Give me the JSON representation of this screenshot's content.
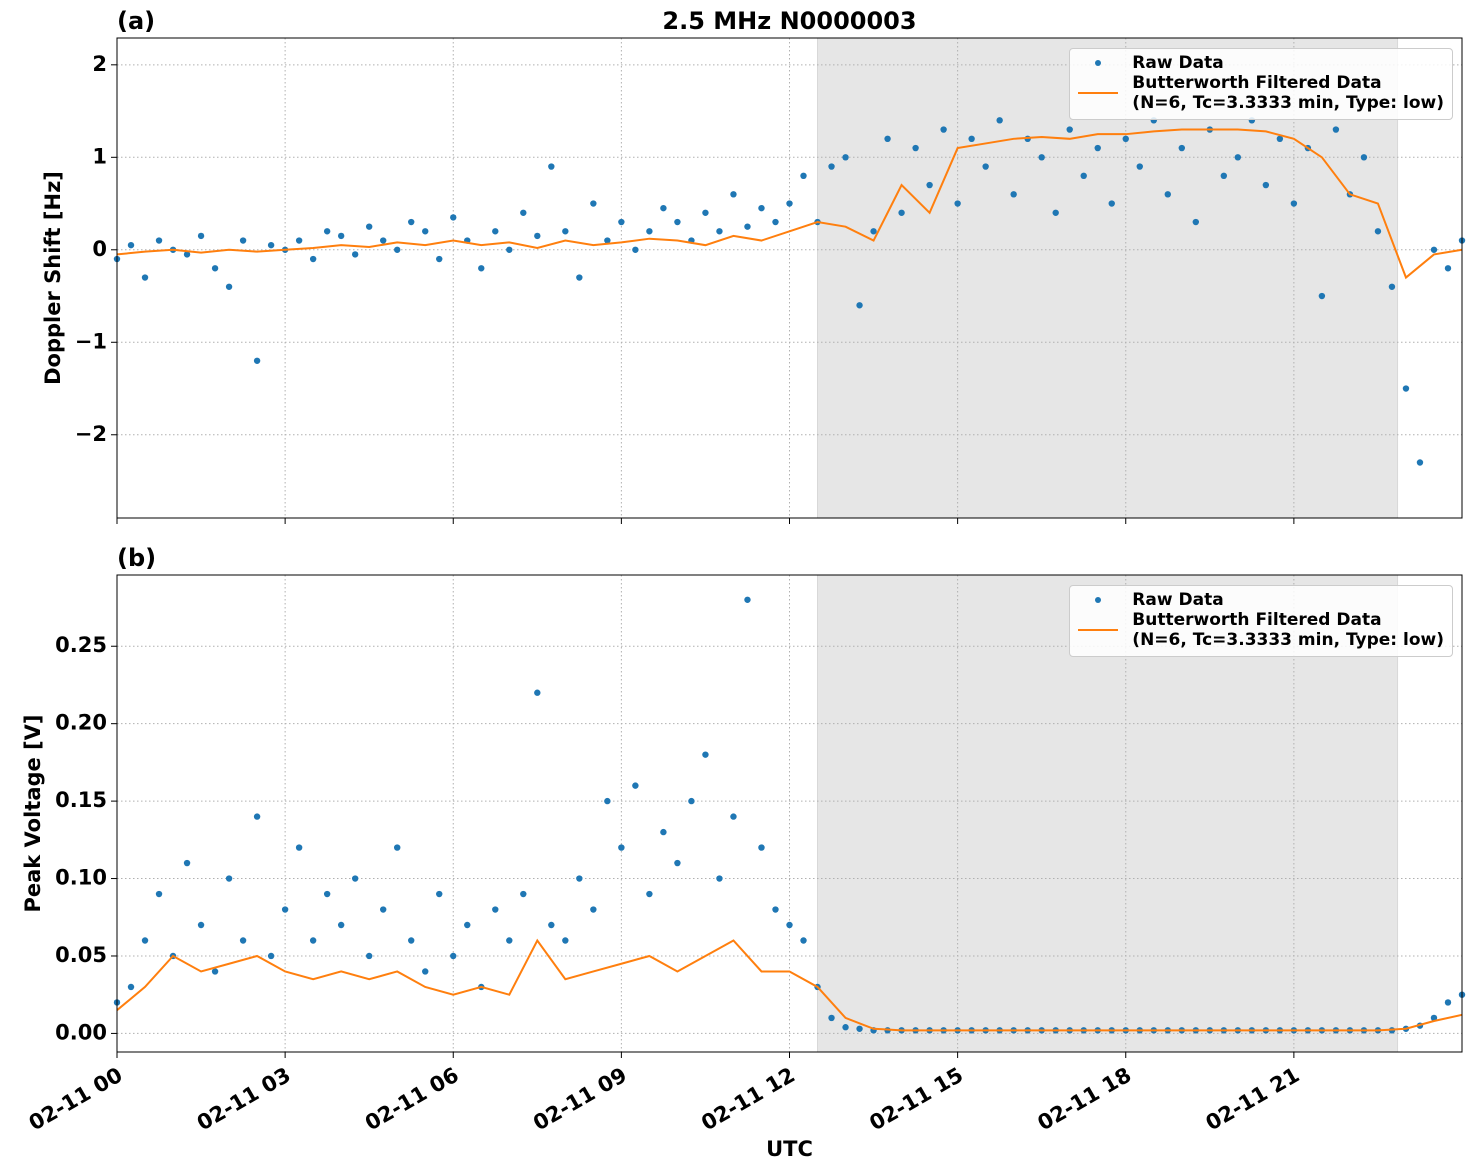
{
  "chart_data": [
    {
      "type": "scatter_line",
      "panel_label": "(a)",
      "title": "2.5 MHz N0000003",
      "y_label": "Doppler Shift [Hz]",
      "xlim": [
        0,
        24
      ],
      "ylim": [
        -2.9,
        2.29
      ],
      "yticks": [
        {
          "value": -2,
          "label": "−2"
        },
        {
          "value": -1,
          "label": "−1"
        },
        0,
        1,
        2
      ],
      "grid": true,
      "legend": "upper right",
      "shaded_span": [
        12.5,
        22.85
      ],
      "series": [
        {
          "name": "Raw Data",
          "type": "scatter",
          "color": "#1f77b4",
          "x": [
            0,
            0.25,
            0.5,
            0.75,
            1,
            1.25,
            1.5,
            1.75,
            2,
            2.25,
            2.5,
            2.75,
            3,
            3.25,
            3.5,
            3.75,
            4,
            4.25,
            4.5,
            4.75,
            5,
            5.25,
            5.5,
            5.75,
            6,
            6.25,
            6.5,
            6.75,
            7,
            7.25,
            7.5,
            7.75,
            8,
            8.25,
            8.5,
            8.75,
            9,
            9.25,
            9.5,
            9.75,
            10,
            10.25,
            10.5,
            10.75,
            11,
            11.25,
            11.5,
            11.75,
            12,
            12.25,
            12.5,
            12.75,
            13,
            13.25,
            13.5,
            13.75,
            14,
            14.25,
            14.5,
            14.75,
            15,
            15.25,
            15.5,
            15.75,
            16,
            16.25,
            16.5,
            16.75,
            17,
            17.25,
            17.5,
            17.75,
            18,
            18.25,
            18.5,
            18.75,
            19,
            19.25,
            19.5,
            19.75,
            20,
            20.25,
            20.5,
            20.75,
            21,
            21.25,
            21.5,
            21.75,
            22,
            22.25,
            22.5,
            22.75,
            23,
            23.25,
            23.5,
            23.75,
            24
          ],
          "values": [
            -0.1,
            0.05,
            -0.3,
            0.1,
            0.0,
            -0.05,
            0.15,
            -0.2,
            -0.4,
            0.1,
            -1.2,
            0.05,
            0.0,
            0.1,
            -0.1,
            0.2,
            0.15,
            -0.05,
            0.25,
            0.1,
            0.0,
            0.3,
            0.2,
            -0.1,
            0.35,
            0.1,
            -0.2,
            0.2,
            0.0,
            0.4,
            0.15,
            0.9,
            0.2,
            -0.3,
            0.5,
            0.1,
            0.3,
            0.0,
            0.2,
            0.45,
            0.3,
            0.1,
            0.4,
            0.2,
            0.6,
            0.25,
            0.45,
            0.3,
            0.5,
            0.8,
            0.3,
            0.9,
            1.0,
            -0.6,
            0.2,
            1.2,
            0.4,
            1.1,
            0.7,
            1.3,
            0.5,
            1.2,
            0.9,
            1.4,
            0.6,
            1.2,
            1.0,
            0.4,
            1.3,
            0.8,
            1.1,
            0.5,
            1.2,
            0.9,
            1.4,
            0.6,
            1.1,
            0.3,
            1.3,
            0.8,
            1.0,
            1.4,
            0.7,
            1.2,
            0.5,
            1.1,
            -0.5,
            1.3,
            0.6,
            1.0,
            0.2,
            -0.4,
            -1.5,
            -2.3,
            0.0,
            -0.2,
            0.1
          ]
        },
        {
          "name": "Butterworth Filtered Data\n(N=6, Tc=3.3333 min, Type: low)",
          "type": "line",
          "color": "#ff7f0e",
          "x": [
            0,
            0.5,
            1,
            1.5,
            2,
            2.5,
            3,
            3.5,
            4,
            4.5,
            5,
            5.5,
            6,
            6.5,
            7,
            7.5,
            8,
            8.5,
            9,
            9.5,
            10,
            10.5,
            11,
            11.5,
            12,
            12.5,
            13,
            13.5,
            14,
            14.5,
            15,
            15.5,
            16,
            16.5,
            17,
            17.5,
            18,
            18.5,
            19,
            19.5,
            20,
            20.5,
            21,
            21.5,
            22,
            22.5,
            23,
            23.5,
            24
          ],
          "values": [
            -0.05,
            -0.02,
            0.0,
            -0.03,
            0.0,
            -0.02,
            0.0,
            0.02,
            0.05,
            0.03,
            0.08,
            0.05,
            0.1,
            0.05,
            0.08,
            0.02,
            0.1,
            0.05,
            0.08,
            0.12,
            0.1,
            0.05,
            0.15,
            0.1,
            0.2,
            0.3,
            0.25,
            0.1,
            0.7,
            0.4,
            1.1,
            1.15,
            1.2,
            1.22,
            1.2,
            1.25,
            1.25,
            1.28,
            1.3,
            1.3,
            1.3,
            1.28,
            1.2,
            1.0,
            0.6,
            0.5,
            -0.3,
            -0.05,
            0.0
          ]
        }
      ]
    },
    {
      "type": "scatter_line",
      "panel_label": "(b)",
      "y_label": "Peak Voltage [V]",
      "x_label": "UTC",
      "xlim": [
        0,
        24
      ],
      "ylim": [
        -0.012,
        0.296
      ],
      "xticks": [
        {
          "value": 0,
          "label": "02-11 00"
        },
        {
          "value": 3,
          "label": "02-11 03"
        },
        {
          "value": 6,
          "label": "02-11 06"
        },
        {
          "value": 9,
          "label": "02-11 09"
        },
        {
          "value": 12,
          "label": "02-11 12"
        },
        {
          "value": 15,
          "label": "02-11 15"
        },
        {
          "value": 18,
          "label": "02-11 18"
        },
        {
          "value": 21,
          "label": "02-11 21"
        }
      ],
      "yticks": [
        {
          "value": 0,
          "label": "0.00"
        },
        {
          "value": 0.05,
          "label": "0.05"
        },
        {
          "value": 0.1,
          "label": "0.10"
        },
        {
          "value": 0.15,
          "label": "0.15"
        },
        {
          "value": 0.2,
          "label": "0.20"
        },
        {
          "value": 0.25,
          "label": "0.25"
        }
      ],
      "grid": true,
      "legend": "upper right",
      "shaded_span": [
        12.5,
        22.85
      ],
      "series": [
        {
          "name": "Raw Data",
          "type": "scatter",
          "color": "#1f77b4",
          "x": [
            0,
            0.25,
            0.5,
            0.75,
            1,
            1.25,
            1.5,
            1.75,
            2,
            2.25,
            2.5,
            2.75,
            3,
            3.25,
            3.5,
            3.75,
            4,
            4.25,
            4.5,
            4.75,
            5,
            5.25,
            5.5,
            5.75,
            6,
            6.25,
            6.5,
            6.75,
            7,
            7.25,
            7.5,
            7.75,
            8,
            8.25,
            8.5,
            8.75,
            9,
            9.25,
            9.5,
            9.75,
            10,
            10.25,
            10.5,
            10.75,
            11,
            11.25,
            11.5,
            11.75,
            12,
            12.25,
            12.5,
            12.75,
            13,
            13.25,
            13.5,
            13.75,
            14,
            14.25,
            14.5,
            14.75,
            15,
            15.25,
            15.5,
            15.75,
            16,
            16.25,
            16.5,
            16.75,
            17,
            17.25,
            17.5,
            17.75,
            18,
            18.25,
            18.5,
            18.75,
            19,
            19.25,
            19.5,
            19.75,
            20,
            20.25,
            20.5,
            20.75,
            21,
            21.25,
            21.5,
            21.75,
            22,
            22.25,
            22.5,
            22.75,
            23,
            23.25,
            23.5,
            23.75,
            24
          ],
          "values": [
            0.02,
            0.03,
            0.06,
            0.09,
            0.05,
            0.11,
            0.07,
            0.04,
            0.1,
            0.06,
            0.14,
            0.05,
            0.08,
            0.12,
            0.06,
            0.09,
            0.07,
            0.1,
            0.05,
            0.08,
            0.12,
            0.06,
            0.04,
            0.09,
            0.05,
            0.07,
            0.03,
            0.08,
            0.06,
            0.09,
            0.22,
            0.07,
            0.06,
            0.1,
            0.08,
            0.15,
            0.12,
            0.16,
            0.09,
            0.13,
            0.11,
            0.15,
            0.18,
            0.1,
            0.14,
            0.28,
            0.12,
            0.08,
            0.07,
            0.06,
            0.03,
            0.01,
            0.004,
            0.003,
            0.002,
            0.002,
            0.002,
            0.002,
            0.002,
            0.002,
            0.002,
            0.002,
            0.002,
            0.002,
            0.002,
            0.002,
            0.002,
            0.002,
            0.002,
            0.002,
            0.002,
            0.002,
            0.002,
            0.002,
            0.002,
            0.002,
            0.002,
            0.002,
            0.002,
            0.002,
            0.002,
            0.002,
            0.002,
            0.002,
            0.002,
            0.002,
            0.002,
            0.002,
            0.002,
            0.002,
            0.002,
            0.002,
            0.003,
            0.005,
            0.01,
            0.02,
            0.025
          ]
        },
        {
          "name": "Butterworth Filtered Data\n(N=6, Tc=3.3333 min, Type: low)",
          "type": "line",
          "color": "#ff7f0e",
          "x": [
            0,
            0.5,
            1,
            1.5,
            2,
            2.5,
            3,
            3.5,
            4,
            4.5,
            5,
            5.5,
            6,
            6.5,
            7,
            7.5,
            8,
            8.5,
            9,
            9.5,
            10,
            10.5,
            11,
            11.5,
            12,
            12.5,
            13,
            13.5,
            14,
            14.5,
            15,
            15.5,
            16,
            16.5,
            17,
            17.5,
            18,
            18.5,
            19,
            19.5,
            20,
            20.5,
            21,
            21.5,
            22,
            22.5,
            23,
            23.5,
            24
          ],
          "values": [
            0.015,
            0.03,
            0.05,
            0.04,
            0.045,
            0.05,
            0.04,
            0.035,
            0.04,
            0.035,
            0.04,
            0.03,
            0.025,
            0.03,
            0.025,
            0.06,
            0.035,
            0.04,
            0.045,
            0.05,
            0.04,
            0.05,
            0.06,
            0.04,
            0.04,
            0.03,
            0.01,
            0.003,
            0.002,
            0.002,
            0.002,
            0.002,
            0.002,
            0.002,
            0.002,
            0.002,
            0.002,
            0.002,
            0.002,
            0.002,
            0.002,
            0.002,
            0.002,
            0.002,
            0.002,
            0.002,
            0.003,
            0.008,
            0.012
          ]
        }
      ]
    }
  ]
}
